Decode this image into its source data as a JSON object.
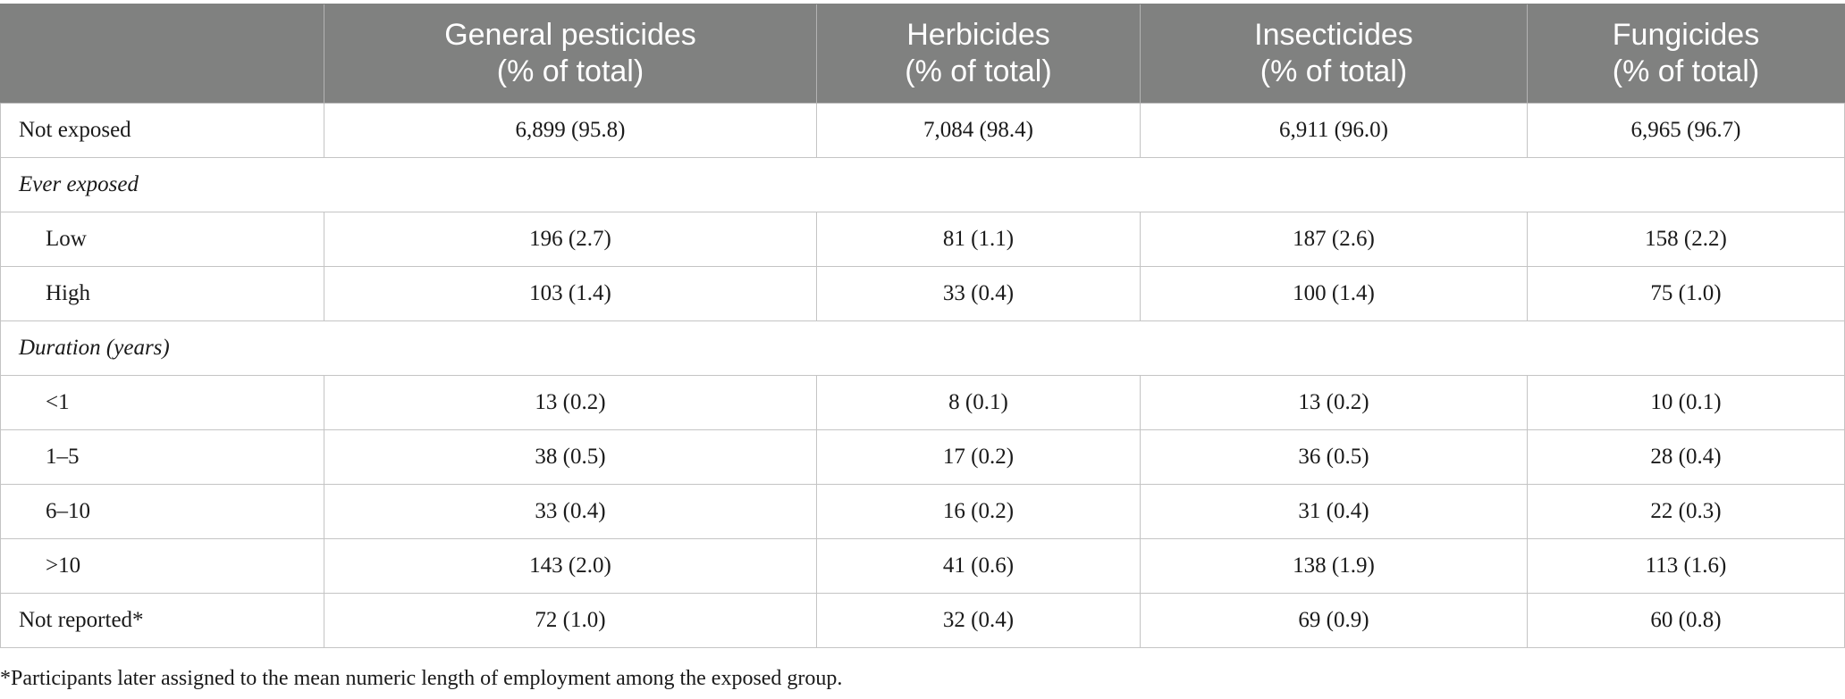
{
  "table": {
    "headers": [
      {
        "line1": "",
        "line2": ""
      },
      {
        "line1": "General pesticides",
        "line2": "(% of total)"
      },
      {
        "line1": "Herbicides",
        "line2": "(% of total)"
      },
      {
        "line1": "Insecticides",
        "line2": "(% of total)"
      },
      {
        "line1": "Fungicides",
        "line2": "(% of total)"
      }
    ],
    "rows": [
      {
        "label": "Not exposed",
        "cells": [
          "6,899 (95.8)",
          "7,084 (98.4)",
          "6,911 (96.0)",
          "6,965 (96.7)"
        ]
      },
      {
        "section": "Ever exposed"
      },
      {
        "label": "Low",
        "cells": [
          "196 (2.7)",
          "81 (1.1)",
          "187 (2.6)",
          "158 (2.2)"
        ]
      },
      {
        "label": "High",
        "cells": [
          "103 (1.4)",
          "33 (0.4)",
          "100 (1.4)",
          "75 (1.0)"
        ]
      },
      {
        "section": "Duration (years)"
      },
      {
        "label": "<1",
        "cells": [
          "13 (0.2)",
          "8 (0.1)",
          "13 (0.2)",
          "10 (0.1)"
        ]
      },
      {
        "label": "1–5",
        "cells": [
          "38 (0.5)",
          "17 (0.2)",
          "36 (0.5)",
          "28 (0.4)"
        ]
      },
      {
        "label": "6–10",
        "cells": [
          "33 (0.4)",
          "16 (0.2)",
          "31 (0.4)",
          "22 (0.3)"
        ]
      },
      {
        "label": ">10",
        "cells": [
          "143 (2.0)",
          "41 (0.6)",
          "138 (1.9)",
          "113 (1.6)"
        ]
      },
      {
        "label": "Not reported*",
        "cells": [
          "72 (1.0)",
          "32 (0.4)",
          "69 (0.9)",
          "60 (0.8)"
        ]
      }
    ]
  },
  "footnote": "*Participants later assigned to the mean numeric length of employment among the exposed group.",
  "colors": {
    "header_background": "#808180",
    "header_text": "#ffffff",
    "grid_line": "#c4c4c4"
  }
}
